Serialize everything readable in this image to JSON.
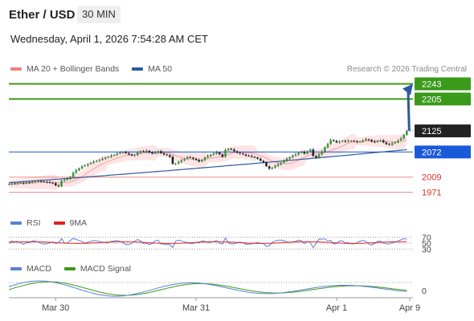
{
  "header": {
    "title": "Ether / USD",
    "interval": "30 MIN",
    "datetime": "Wednesday, April 1, 2026 7:54:28 AM CET"
  },
  "legend_main": [
    {
      "label": "MA 20 + Bollinger Bands",
      "color": "#f08080"
    },
    {
      "label": "MA 50",
      "color": "#2c5aa0"
    }
  ],
  "credit": "Research © 2026 Trading Central",
  "legend_rsi": [
    {
      "label": "RSI",
      "color": "#5b7fd6"
    },
    {
      "label": "9MA",
      "color": "#e02020"
    }
  ],
  "legend_macd": [
    {
      "label": "MACD",
      "color": "#5b7fd6"
    },
    {
      "label": "MACD Signal",
      "color": "#3a9a1a"
    }
  ],
  "chart_data": {
    "type": "line",
    "price_axis": {
      "range": [
        1950,
        2260
      ],
      "levels": [
        {
          "value": 2243,
          "label": "2243",
          "style": "resistance",
          "color": "#3a9a1a"
        },
        {
          "value": 2205,
          "label": "2205",
          "style": "resistance",
          "color": "#3a9a1a"
        },
        {
          "value": 2125,
          "label": "2125",
          "style": "last",
          "color": "#222222"
        },
        {
          "value": 2072,
          "label": "2072",
          "style": "pivot",
          "color": "#1a5ad8"
        },
        {
          "value": 2009,
          "label": "2009",
          "style": "support",
          "color": "#e03030"
        },
        {
          "value": 1971,
          "label": "1971",
          "style": "support",
          "color": "#e03030"
        }
      ]
    },
    "x_axis": {
      "ticks": [
        {
          "label": "Mar 30",
          "index": 16
        },
        {
          "label": "Mar 31",
          "index": 64
        },
        {
          "label": "Apr 1",
          "index": 112
        },
        {
          "label": "Apr 9",
          "index": 137
        }
      ],
      "count": 138
    },
    "price_series": [
      1991,
      1993,
      1992,
      1994,
      1995,
      1993,
      1996,
      1995,
      1997,
      1998,
      1999,
      1998,
      1997,
      1996,
      1995,
      1994,
      1988,
      1986,
      2000,
      2002,
      2004,
      2010,
      2020,
      2026,
      2031,
      2036,
      2038,
      2042,
      2045,
      2048,
      2050,
      2052,
      2055,
      2058,
      2060,
      2063,
      2065,
      2068,
      2070,
      2072,
      2069,
      2066,
      2063,
      2064,
      2070,
      2074,
      2073,
      2075,
      2071,
      2068,
      2070,
      2074,
      2069,
      2066,
      2064,
      2060,
      2042,
      2043,
      2047,
      2051,
      2055,
      2059,
      2058,
      2055,
      2052,
      2048,
      2052,
      2058,
      2062,
      2065,
      2068,
      2071,
      2066,
      2060,
      2077,
      2080,
      2078,
      2074,
      2070,
      2068,
      2066,
      2063,
      2062,
      2060,
      2058,
      2055,
      2050,
      2046,
      2036,
      2030,
      2033,
      2037,
      2041,
      2045,
      2050,
      2055,
      2059,
      2063,
      2066,
      2070,
      2072,
      2068,
      2074,
      2078,
      2062,
      2058,
      2066,
      2073,
      2084,
      2092,
      2102,
      2100,
      2096,
      2098,
      2100,
      2098,
      2100,
      2100,
      2098,
      2097,
      2098,
      2101,
      2104,
      2102,
      2098,
      2097,
      2100,
      2101,
      2096,
      2092,
      2090,
      2094,
      2097,
      2101,
      2106,
      2115,
      2125
    ],
    "ma50": {
      "start": 1995,
      "end": 2078
    },
    "forecast": {
      "from": 2125,
      "to": 2243
    },
    "rsi_levels": [
      70,
      50,
      30
    ],
    "macd_zero": 0
  }
}
